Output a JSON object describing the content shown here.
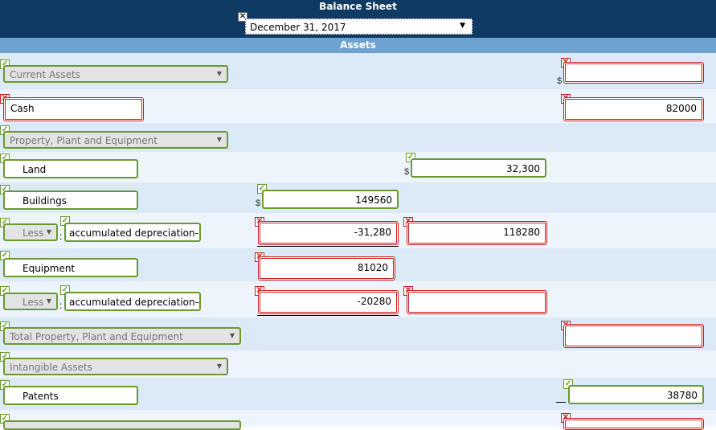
{
  "header": {
    "title": "Balance Sheet",
    "date_selected": "December 31, 2017",
    "section": "Assets"
  },
  "currency_symbol": "$",
  "rows": {
    "current_assets": {
      "label": "Current Assets",
      "value": ""
    },
    "cash": {
      "label": "Cash",
      "value": "82000"
    },
    "ppe": {
      "label": "Property, Plant and Equipment"
    },
    "land": {
      "label": "Land",
      "value": "32,300"
    },
    "buildings": {
      "label": "Buildings",
      "value": "149560"
    },
    "less1": {
      "op": "Less",
      "label": "accumulated depreciation-l",
      "value": "-31,280",
      "net": "118280"
    },
    "equipment": {
      "label": "Equipment",
      "value": "81020"
    },
    "less2": {
      "op": "Less",
      "label": "accumulated depreciation-e",
      "value": "-20280",
      "net": ""
    },
    "total_ppe": {
      "label": "Total Property, Plant and Equipment",
      "value": ""
    },
    "intangible": {
      "label": "Intangible Assets"
    },
    "patents": {
      "label": "Patents",
      "value": "38780"
    }
  },
  "colors": {
    "header": "#0e3a64",
    "section": "#6fa3cf",
    "correct": "#6a9a2e",
    "incorrect": "#c81e1e"
  }
}
